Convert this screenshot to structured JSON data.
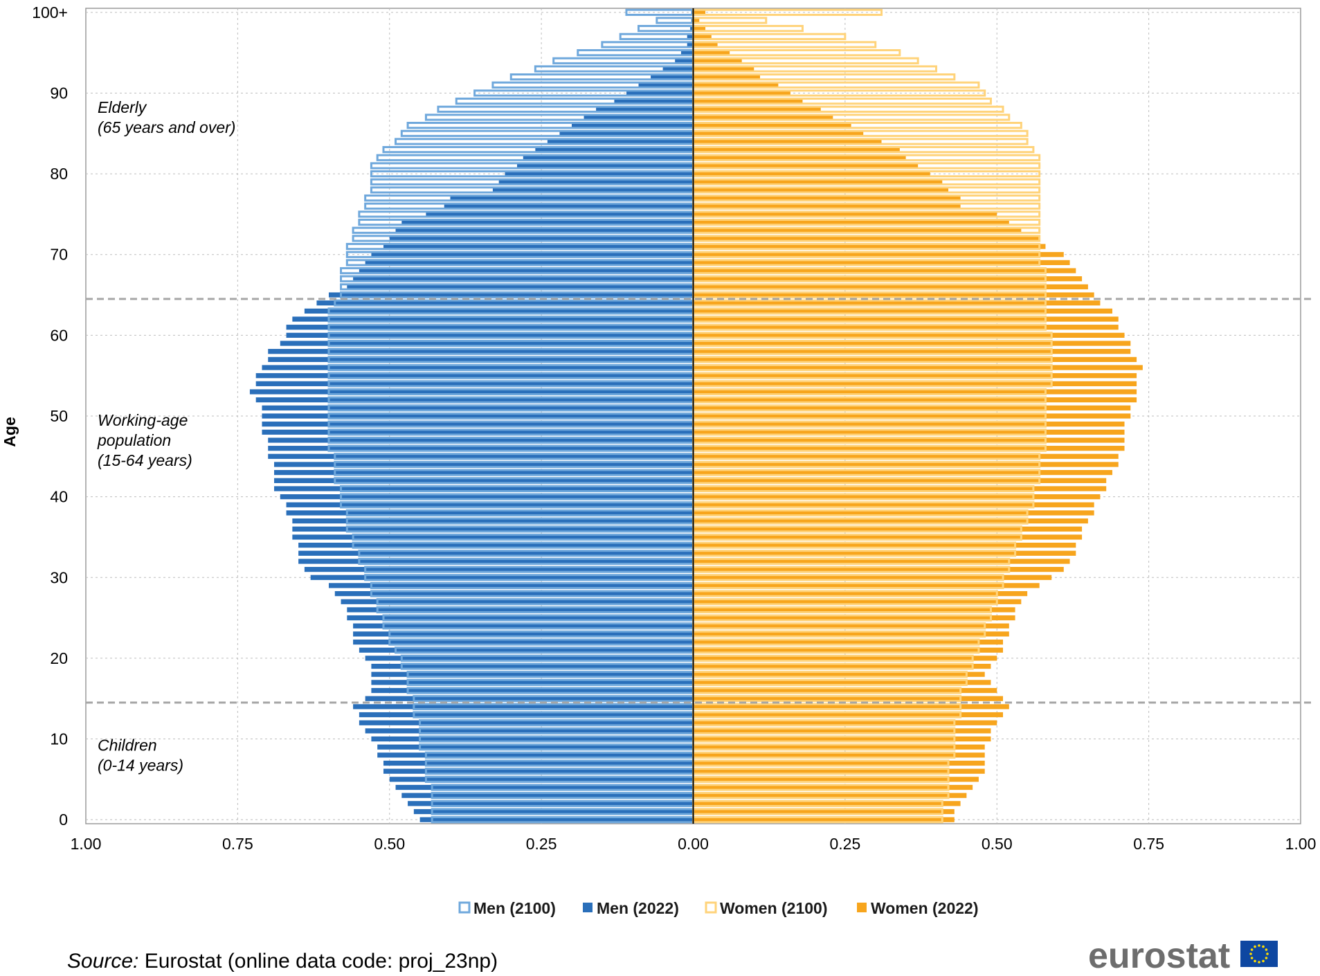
{
  "chart_data": {
    "type": "bar",
    "subtype": "population-pyramid",
    "ylabel": "Age",
    "xlabel": "",
    "xlim_left": [
      1.0,
      0.0
    ],
    "xlim_right": [
      0.0,
      1.0
    ],
    "x_ticks": [
      "1.00",
      "0.75",
      "0.50",
      "0.25",
      "0.00",
      "0.25",
      "0.50",
      "0.75",
      "1.00"
    ],
    "x_tick_values": [
      -1.0,
      -0.75,
      -0.5,
      -0.25,
      0.0,
      0.25,
      0.5,
      0.75,
      1.0
    ],
    "y_ticks": [
      "0",
      "10",
      "20",
      "30",
      "40",
      "50",
      "60",
      "70",
      "80",
      "90",
      "100+"
    ],
    "y_tick_values": [
      0,
      10,
      20,
      30,
      40,
      50,
      60,
      70,
      80,
      90,
      100
    ],
    "grid": true,
    "age_group_boundaries": [
      14.5,
      64.5
    ],
    "annotations": [
      {
        "lines": [
          "Elderly",
          "(65 years and over)"
        ],
        "age": 87
      },
      {
        "lines": [
          "Working-age",
          "population",
          "(15-64 years)"
        ],
        "age": 47
      },
      {
        "lines": [
          "Children",
          "(0-14 years)"
        ],
        "age": 8
      }
    ],
    "series": [
      {
        "name": "Men (2100)",
        "side": "left",
        "style": "outline",
        "color": "#6fa8dc"
      },
      {
        "name": "Men (2022)",
        "side": "left",
        "style": "filled",
        "color": "#2a6fba"
      },
      {
        "name": "Women (2100)",
        "side": "right",
        "style": "outline",
        "color": "#ffd37a"
      },
      {
        "name": "Women (2022)",
        "side": "right",
        "style": "filled",
        "color": "#f7a51d"
      }
    ],
    "ages": [
      0,
      1,
      2,
      3,
      4,
      5,
      6,
      7,
      8,
      9,
      10,
      11,
      12,
      13,
      14,
      15,
      16,
      17,
      18,
      19,
      20,
      21,
      22,
      23,
      24,
      25,
      26,
      27,
      28,
      29,
      30,
      31,
      32,
      33,
      34,
      35,
      36,
      37,
      38,
      39,
      40,
      41,
      42,
      43,
      44,
      45,
      46,
      47,
      48,
      49,
      50,
      51,
      52,
      53,
      54,
      55,
      56,
      57,
      58,
      59,
      60,
      61,
      62,
      63,
      64,
      65,
      66,
      67,
      68,
      69,
      70,
      71,
      72,
      73,
      74,
      75,
      76,
      77,
      78,
      79,
      80,
      81,
      82,
      83,
      84,
      85,
      86,
      87,
      88,
      89,
      90,
      91,
      92,
      93,
      94,
      95,
      96,
      97,
      98,
      99,
      100
    ],
    "men_2022": [
      0.45,
      0.46,
      0.47,
      0.48,
      0.49,
      0.5,
      0.51,
      0.51,
      0.52,
      0.52,
      0.53,
      0.54,
      0.55,
      0.55,
      0.56,
      0.54,
      0.53,
      0.53,
      0.53,
      0.53,
      0.54,
      0.55,
      0.56,
      0.56,
      0.56,
      0.57,
      0.57,
      0.58,
      0.59,
      0.6,
      0.63,
      0.64,
      0.65,
      0.65,
      0.65,
      0.66,
      0.66,
      0.66,
      0.67,
      0.67,
      0.68,
      0.69,
      0.69,
      0.69,
      0.69,
      0.7,
      0.7,
      0.7,
      0.71,
      0.71,
      0.71,
      0.71,
      0.72,
      0.73,
      0.72,
      0.72,
      0.71,
      0.7,
      0.7,
      0.68,
      0.67,
      0.67,
      0.66,
      0.64,
      0.62,
      0.6,
      0.57,
      0.56,
      0.55,
      0.54,
      0.53,
      0.51,
      0.5,
      0.49,
      0.48,
      0.44,
      0.41,
      0.4,
      0.33,
      0.32,
      0.31,
      0.29,
      0.28,
      0.26,
      0.24,
      0.22,
      0.2,
      0.18,
      0.16,
      0.13,
      0.11,
      0.09,
      0.07,
      0.05,
      0.03,
      0.02,
      0.01,
      0.01,
      0.005,
      0.003,
      0.003
    ],
    "men_2100": [
      0.43,
      0.43,
      0.43,
      0.43,
      0.43,
      0.44,
      0.44,
      0.44,
      0.44,
      0.45,
      0.45,
      0.45,
      0.45,
      0.46,
      0.46,
      0.46,
      0.47,
      0.47,
      0.47,
      0.48,
      0.48,
      0.49,
      0.5,
      0.5,
      0.51,
      0.51,
      0.52,
      0.52,
      0.53,
      0.53,
      0.54,
      0.54,
      0.55,
      0.55,
      0.56,
      0.56,
      0.57,
      0.57,
      0.57,
      0.58,
      0.58,
      0.58,
      0.59,
      0.59,
      0.59,
      0.59,
      0.6,
      0.6,
      0.6,
      0.6,
      0.6,
      0.6,
      0.6,
      0.6,
      0.6,
      0.6,
      0.6,
      0.6,
      0.6,
      0.6,
      0.6,
      0.6,
      0.6,
      0.6,
      0.59,
      0.58,
      0.58,
      0.58,
      0.58,
      0.57,
      0.57,
      0.57,
      0.56,
      0.56,
      0.55,
      0.55,
      0.54,
      0.54,
      0.53,
      0.53,
      0.53,
      0.53,
      0.52,
      0.51,
      0.49,
      0.48,
      0.47,
      0.44,
      0.42,
      0.39,
      0.36,
      0.33,
      0.3,
      0.26,
      0.23,
      0.19,
      0.15,
      0.12,
      0.09,
      0.06,
      0.11
    ],
    "women_2022": [
      0.43,
      0.43,
      0.44,
      0.45,
      0.46,
      0.47,
      0.48,
      0.48,
      0.48,
      0.48,
      0.49,
      0.49,
      0.5,
      0.51,
      0.52,
      0.51,
      0.5,
      0.49,
      0.48,
      0.49,
      0.5,
      0.51,
      0.51,
      0.52,
      0.52,
      0.53,
      0.53,
      0.54,
      0.55,
      0.57,
      0.59,
      0.61,
      0.62,
      0.63,
      0.63,
      0.64,
      0.64,
      0.65,
      0.66,
      0.66,
      0.67,
      0.68,
      0.68,
      0.69,
      0.7,
      0.7,
      0.71,
      0.71,
      0.71,
      0.71,
      0.72,
      0.72,
      0.73,
      0.73,
      0.73,
      0.73,
      0.74,
      0.73,
      0.72,
      0.72,
      0.71,
      0.7,
      0.7,
      0.69,
      0.67,
      0.66,
      0.65,
      0.64,
      0.63,
      0.62,
      0.61,
      0.58,
      0.57,
      0.54,
      0.52,
      0.5,
      0.44,
      0.44,
      0.42,
      0.41,
      0.39,
      0.37,
      0.35,
      0.34,
      0.31,
      0.28,
      0.26,
      0.23,
      0.21,
      0.18,
      0.16,
      0.14,
      0.11,
      0.1,
      0.08,
      0.06,
      0.04,
      0.03,
      0.02,
      0.01,
      0.02
    ],
    "women_2100": [
      0.41,
      0.41,
      0.41,
      0.42,
      0.42,
      0.42,
      0.42,
      0.42,
      0.43,
      0.43,
      0.43,
      0.43,
      0.43,
      0.44,
      0.44,
      0.44,
      0.44,
      0.45,
      0.45,
      0.46,
      0.46,
      0.47,
      0.47,
      0.48,
      0.48,
      0.49,
      0.49,
      0.5,
      0.5,
      0.51,
      0.51,
      0.52,
      0.52,
      0.53,
      0.53,
      0.54,
      0.54,
      0.55,
      0.55,
      0.56,
      0.56,
      0.56,
      0.57,
      0.57,
      0.57,
      0.57,
      0.58,
      0.58,
      0.58,
      0.58,
      0.58,
      0.58,
      0.58,
      0.58,
      0.59,
      0.59,
      0.59,
      0.59,
      0.59,
      0.59,
      0.59,
      0.58,
      0.58,
      0.58,
      0.58,
      0.58,
      0.58,
      0.58,
      0.58,
      0.57,
      0.57,
      0.57,
      0.57,
      0.57,
      0.57,
      0.57,
      0.57,
      0.57,
      0.57,
      0.57,
      0.57,
      0.57,
      0.57,
      0.56,
      0.55,
      0.55,
      0.54,
      0.52,
      0.51,
      0.49,
      0.48,
      0.47,
      0.43,
      0.4,
      0.37,
      0.34,
      0.3,
      0.25,
      0.18,
      0.12,
      0.31
    ]
  },
  "source": {
    "prefix": "Source:",
    "text": " Eurostat (online data code: proj_23np)"
  },
  "logo": {
    "text": "eurostat",
    "flag_color": "#0e47a1",
    "star_color": "#ffdd00"
  }
}
